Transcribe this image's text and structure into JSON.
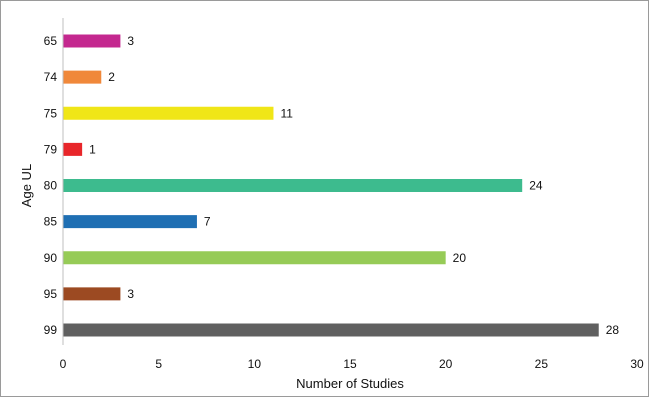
{
  "chart_data": {
    "type": "bar",
    "orientation": "horizontal",
    "title": "",
    "xlabel": "Number of Studies",
    "ylabel": "Age UL",
    "xlim": [
      0,
      30
    ],
    "x_ticks": [
      0,
      5,
      10,
      15,
      20,
      25,
      30
    ],
    "grid": false,
    "legend": "none",
    "categories": [
      "65",
      "74",
      "75",
      "79",
      "80",
      "85",
      "90",
      "95",
      "99"
    ],
    "values": [
      3,
      2,
      11,
      1,
      24,
      7,
      20,
      3,
      28
    ],
    "colors": [
      "#c4288f",
      "#f0883a",
      "#f0e617",
      "#e8262a",
      "#3dbb8e",
      "#1f6fb3",
      "#96cb57",
      "#9c4a22",
      "#606060"
    ]
  }
}
